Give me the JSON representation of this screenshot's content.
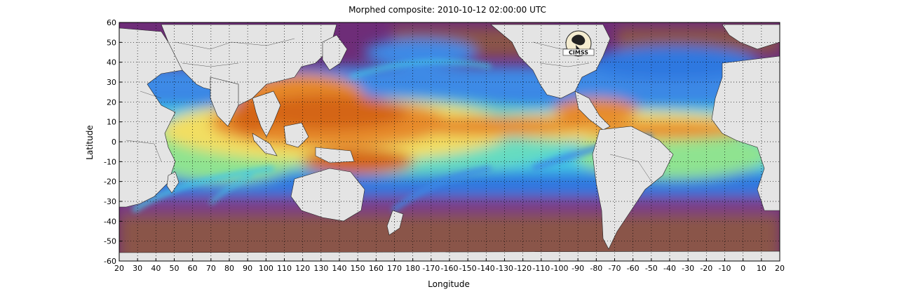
{
  "title": "Morphed composite: 2010-10-12 02:00:00 UTC",
  "xlabel": "Longitude",
  "ylabel": "Latitude",
  "x_ticks": [
    "20",
    "30",
    "40",
    "50",
    "60",
    "70",
    "80",
    "90",
    "100",
    "110",
    "120",
    "130",
    "140",
    "150",
    "160",
    "170",
    "180",
    "-170",
    "-160",
    "-150",
    "-140",
    "-130",
    "-120",
    "-110",
    "-100",
    "-90",
    "-80",
    "-70",
    "-60",
    "-50",
    "-40",
    "-30",
    "-20",
    "-10",
    "0",
    "10",
    "20"
  ],
  "y_ticks": [
    "60",
    "50",
    "40",
    "30",
    "20",
    "10",
    "0",
    "-10",
    "-20",
    "-30",
    "-40",
    "-50",
    "-60"
  ],
  "logo": {
    "text": "CIMSS",
    "icon": "cimss-logo-icon"
  },
  "colors": {
    "land": "#e4e4e4",
    "dry": "#7a3a7a",
    "dry_brown": "#8a5a4a",
    "moist_blue": "#2a70e0",
    "cyan": "#40d0e8",
    "green": "#80e080",
    "yellow": "#f0e060",
    "orange": "#e88020",
    "deep_orange": "#d06010"
  },
  "chart_data": {
    "type": "heatmap",
    "title": "Morphed composite: 2010-10-12 02:00:00 UTC",
    "xlabel": "Longitude",
    "ylabel": "Latitude",
    "xlim": [
      20,
      380
    ],
    "ylim": [
      -60,
      60
    ],
    "grid": true
  }
}
